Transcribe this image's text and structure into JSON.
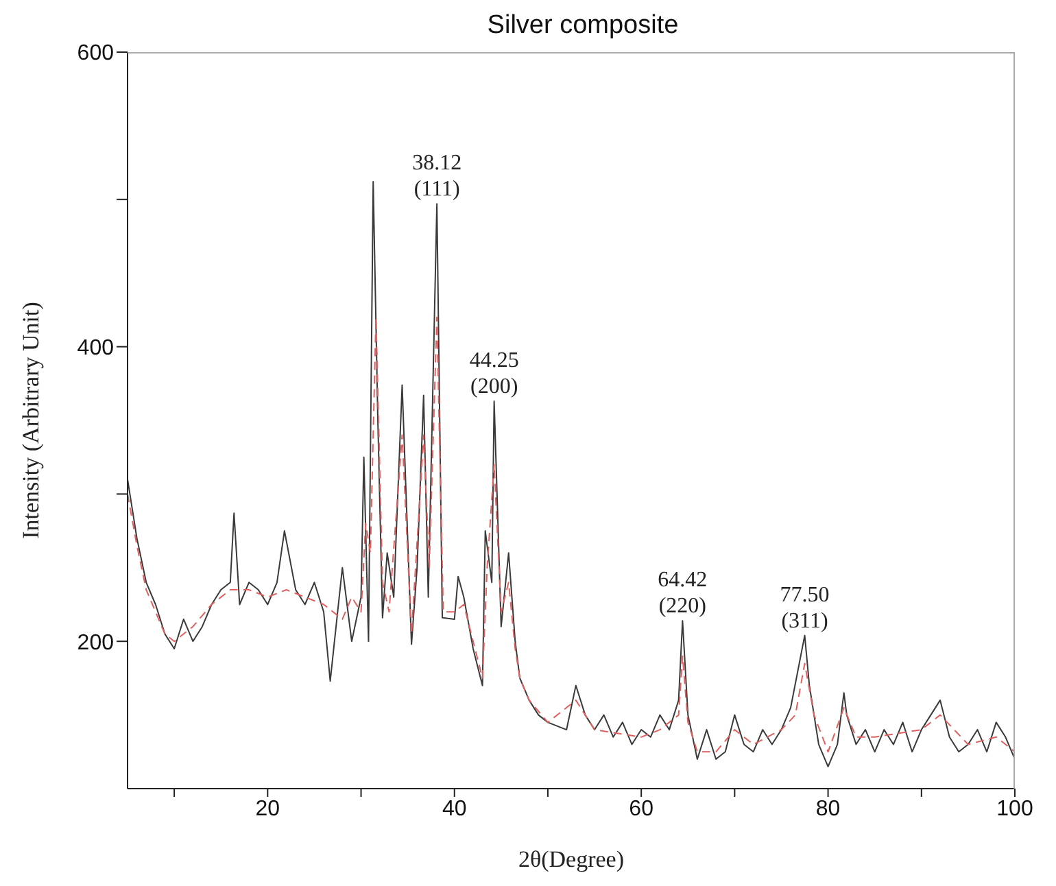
{
  "chart_data": {
    "type": "line",
    "title": "Silver composite",
    "xlabel": "2θ(Degree)",
    "ylabel": "Intensity (Arbitrary Unit)",
    "xlim": [
      5,
      100
    ],
    "xticks": [
      {
        "value": 10,
        "label": null
      },
      20,
      {
        "value": 30,
        "label": null
      },
      40,
      {
        "value": 50,
        "label": null
      },
      60,
      {
        "value": 70,
        "label": null
      },
      80,
      {
        "value": 90,
        "label": null
      },
      100
    ],
    "ylim": [
      100,
      600
    ],
    "yticks": [
      200,
      {
        "value": 300,
        "label": null
      },
      400,
      {
        "value": 500,
        "label": null
      },
      600
    ],
    "grid": false,
    "marker": "none",
    "annotations": [
      {
        "text": "38.12\n(111)",
        "x": 38.12,
        "y": 497
      },
      {
        "text": "44.25\n(200)",
        "x": 44.25,
        "y": 363
      },
      {
        "text": "64.42\n(220)",
        "x": 64.42,
        "y": 214
      },
      {
        "text": "77.50\n(311)",
        "x": 77.5,
        "y": 204
      }
    ],
    "series": [
      {
        "color": "#3a3a3a",
        "line_style": "solid",
        "x": [
          5,
          6,
          7,
          8,
          9,
          10,
          11,
          12,
          13,
          14,
          15,
          16,
          16.4,
          17,
          18,
          19,
          20,
          21,
          21.8,
          23,
          24,
          25,
          26,
          26.7,
          28,
          29,
          30,
          30.3,
          30.8,
          31.3,
          31.8,
          32.3,
          32.8,
          33.5,
          34.4,
          35.4,
          36,
          36.7,
          37.2,
          38.12,
          38.7,
          40,
          40.4,
          41,
          42,
          43,
          43.3,
          44,
          44.25,
          45,
          45.8,
          46.5,
          47,
          48,
          49,
          50,
          52,
          53,
          54,
          55,
          56,
          57,
          58,
          59,
          60,
          61,
          62,
          63,
          64,
          64.42,
          65,
          66,
          67,
          68,
          69,
          70,
          71,
          72,
          73,
          74,
          75,
          76,
          77.5,
          78,
          79,
          80,
          81,
          81.7,
          82,
          83,
          84,
          85,
          86,
          87,
          88,
          89,
          90,
          91,
          92,
          93,
          94,
          95,
          96,
          97,
          98,
          99,
          100
        ],
        "values": [
          310,
          270,
          240,
          225,
          205,
          195,
          215,
          200,
          210,
          225,
          235,
          240,
          287,
          225,
          240,
          235,
          225,
          240,
          275,
          235,
          225,
          240,
          220,
          173,
          250,
          200,
          230,
          325,
          200,
          512,
          350,
          216,
          260,
          230,
          374,
          198,
          250,
          367,
          230,
          497,
          216,
          215,
          244,
          230,
          195,
          170,
          275,
          240,
          363,
          210,
          260,
          200,
          175,
          160,
          150,
          145,
          140,
          170,
          150,
          140,
          150,
          135,
          145,
          130,
          140,
          135,
          150,
          140,
          160,
          214,
          150,
          120,
          140,
          120,
          125,
          150,
          130,
          125,
          140,
          130,
          140,
          155,
          204,
          170,
          130,
          115,
          130,
          165,
          150,
          130,
          140,
          125,
          140,
          130,
          145,
          125,
          140,
          150,
          160,
          135,
          125,
          130,
          140,
          125,
          145,
          135,
          120
        ]
      },
      {
        "color": "#e06060",
        "line_style": "dashed",
        "x": [
          5,
          6,
          7,
          8,
          9,
          10,
          12,
          14,
          16,
          18,
          20,
          22,
          24,
          26,
          28,
          29,
          30,
          30.5,
          31,
          31.6,
          32.3,
          33,
          34.4,
          35.4,
          36.7,
          37.3,
          38.12,
          38.8,
          40,
          41,
          42,
          43,
          43.5,
          44.25,
          45,
          45.8,
          46.5,
          47,
          48,
          50,
          53,
          55,
          60,
          62,
          64,
          64.42,
          65,
          66,
          68,
          70,
          72,
          75,
          76.5,
          77.5,
          78.5,
          80,
          81.7,
          83,
          85,
          90,
          92,
          95,
          98,
          100
        ],
        "values": [
          300,
          265,
          235,
          220,
          205,
          200,
          210,
          225,
          235,
          235,
          230,
          235,
          230,
          225,
          215,
          230,
          220,
          280,
          260,
          420,
          240,
          220,
          340,
          205,
          340,
          250,
          420,
          220,
          220,
          225,
          200,
          175,
          250,
          320,
          220,
          240,
          195,
          175,
          160,
          145,
          160,
          140,
          135,
          140,
          150,
          190,
          145,
          125,
          125,
          140,
          130,
          140,
          150,
          185,
          150,
          125,
          155,
          135,
          135,
          140,
          150,
          130,
          135,
          125
        ]
      }
    ]
  }
}
